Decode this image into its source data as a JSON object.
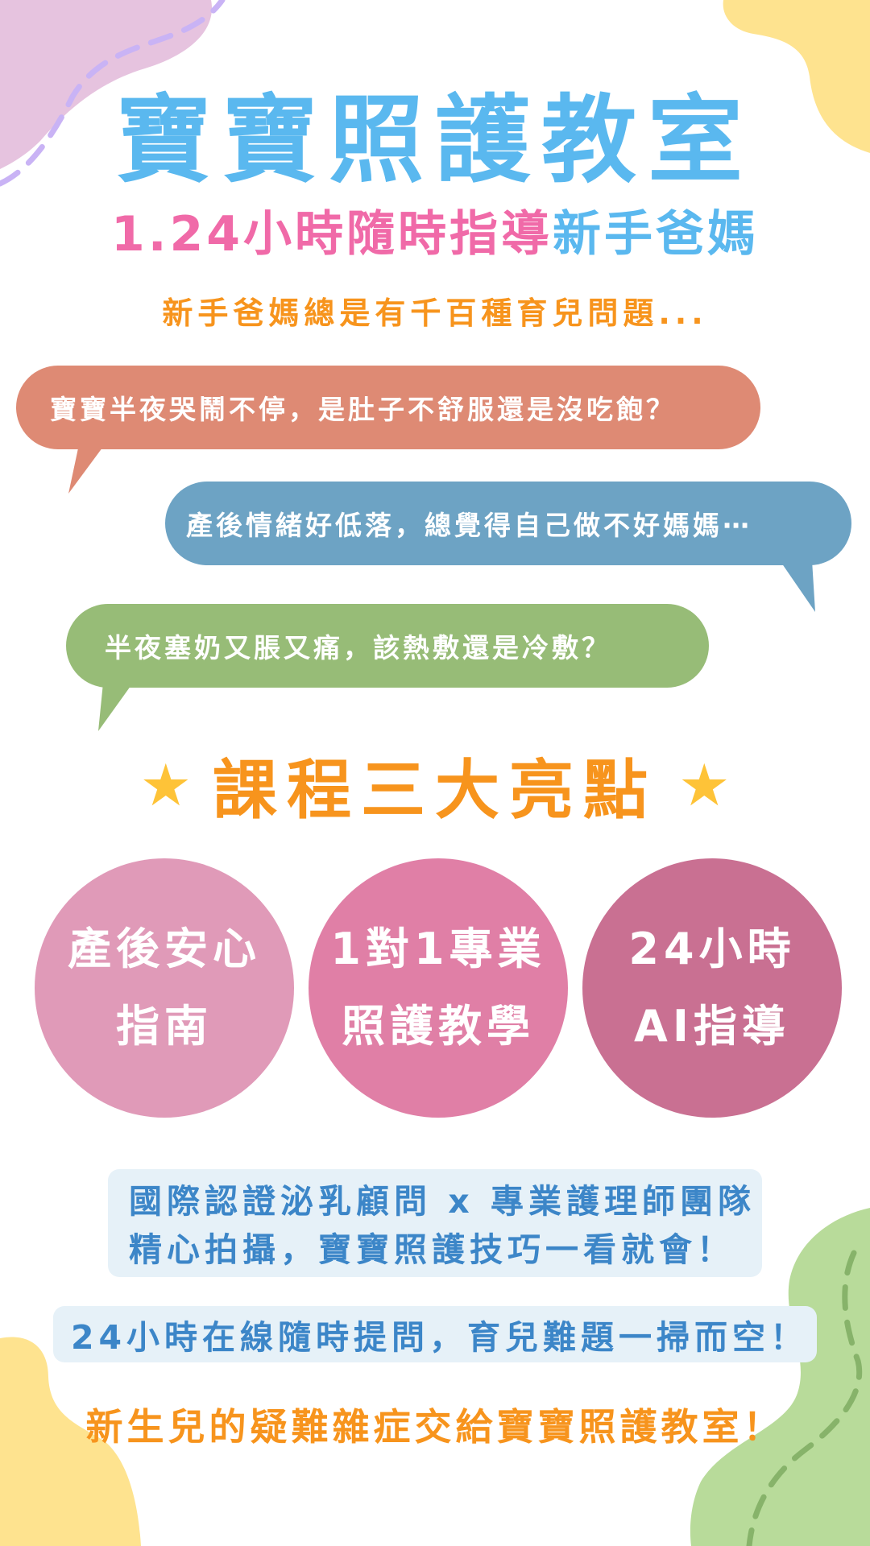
{
  "title": "寶寶照護教室",
  "subtitle": {
    "part1": "1.24小時隨時指導",
    "part2": "新手爸媽"
  },
  "intro": "新手爸媽總是有千百種育兒問題...",
  "bubbles": [
    "寶寶半夜哭鬧不停，是肚子不舒服還是沒吃飽？",
    "產後情緒好低落，總覺得自己做不好媽媽⋯",
    "半夜塞奶又脹又痛，該熱敷還是冷敷？"
  ],
  "highlights": {
    "title": "課程三大亮點",
    "star_icon": "star-icon",
    "items": [
      {
        "line1": "產後安心",
        "line2": "指南"
      },
      {
        "line1": "1對1專業",
        "line2": "照護教學"
      },
      {
        "line1": "24小時",
        "line2": "AI指導"
      }
    ]
  },
  "panel1": {
    "line1": "國際認證泌乳顧問 x 專業護理師團隊",
    "line2": "精心拍攝，寶寶照護技巧一看就會！"
  },
  "panel2": "24小時在線隨時提問，育兒難題一掃而空！",
  "closing": "新生兒的疑難雜症交給寶寶照護教室！",
  "colors": {
    "title_blue": "#5ab8ef",
    "accent_pink": "#f06aa8",
    "accent_orange": "#f7941d",
    "bubble_red": "#de8a74",
    "bubble_blue": "#6da3c4",
    "bubble_green": "#97bc77",
    "circle_1": "#e09ab8",
    "circle_2": "#e07fa6",
    "circle_3": "#c97092",
    "panel_bg": "#e6f1f8",
    "panel_text": "#3c86c8",
    "star": "#fec338"
  }
}
